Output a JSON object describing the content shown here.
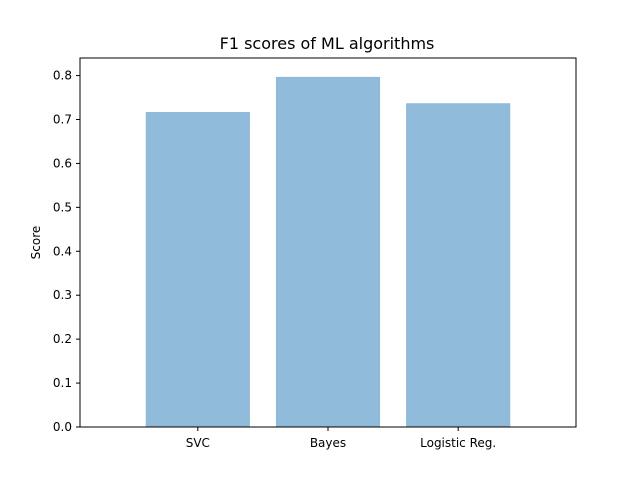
{
  "chart_data": {
    "type": "bar",
    "title": "F1 scores of ML algorithms",
    "xlabel": "",
    "ylabel": "Score",
    "categories": [
      "SVC",
      "Bayes",
      "Logistic Reg."
    ],
    "values": [
      0.717,
      0.797,
      0.737
    ],
    "ylim": [
      0,
      0.84
    ],
    "yticks": [
      0.0,
      0.1,
      0.2,
      0.3,
      0.4,
      0.5,
      0.6,
      0.7,
      0.8
    ],
    "ytick_labels": [
      "0.0",
      "0.1",
      "0.2",
      "0.3",
      "0.4",
      "0.5",
      "0.6",
      "0.7",
      "0.8"
    ],
    "grid": false,
    "legend": "none",
    "bar_color": "#8fbad9"
  }
}
